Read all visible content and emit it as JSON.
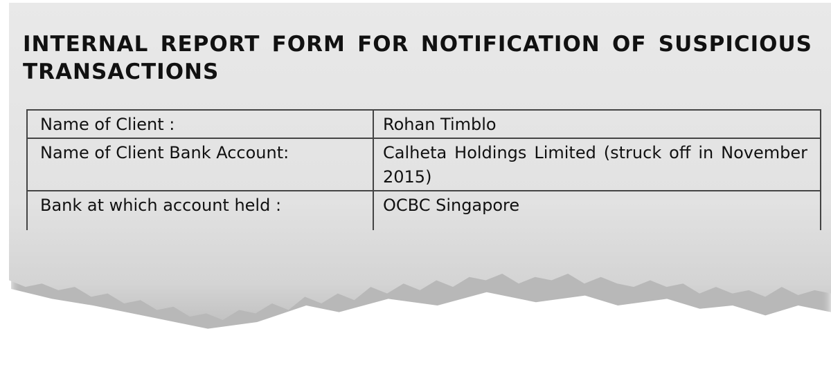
{
  "title": "INTERNAL REPORT FORM FOR NOTIFICATION OF SUSPICIOUS TRANSACTIONS",
  "rows": [
    {
      "label": "Name of Client :",
      "value": "Rohan Timblo"
    },
    {
      "label": "Name of Client Bank Account:",
      "value": "Calheta Holdings Limited (struck off in November 2015)"
    },
    {
      "label": "Bank at which account held :",
      "value": "OCBC Singapore"
    }
  ]
}
